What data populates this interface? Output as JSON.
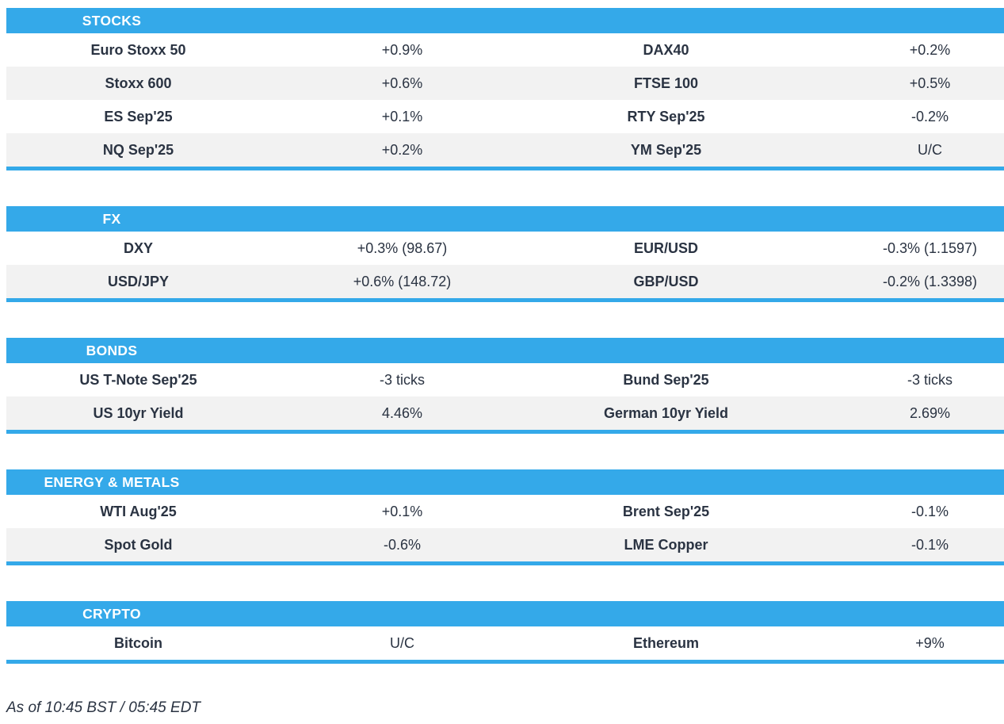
{
  "colors": {
    "accent_blue": "#34a9e9",
    "row_alt_gray": "#f2f2f2",
    "text_dark": "#2a3342",
    "header_text": "#ffffff"
  },
  "sections": [
    {
      "title": "STOCKS",
      "rows": [
        [
          "Euro Stoxx 50",
          "+0.9%",
          "DAX40",
          "+0.2%"
        ],
        [
          "Stoxx 600",
          "+0.6%",
          "FTSE 100",
          "+0.5%"
        ],
        [
          "ES Sep'25",
          "+0.1%",
          "RTY Sep'25",
          "-0.2%"
        ],
        [
          "NQ Sep'25",
          "+0.2%",
          "YM Sep'25",
          "U/C"
        ]
      ]
    },
    {
      "title": "FX",
      "rows": [
        [
          "DXY",
          "+0.3% (98.67)",
          "EUR/USD",
          "-0.3% (1.1597)"
        ],
        [
          "USD/JPY",
          "+0.6% (148.72)",
          "GBP/USD",
          "-0.2% (1.3398)"
        ]
      ]
    },
    {
      "title": "BONDS",
      "rows": [
        [
          "US T-Note Sep'25",
          "-3 ticks",
          "Bund Sep'25",
          "-3 ticks"
        ],
        [
          "US 10yr Yield",
          "4.46%",
          "German 10yr Yield",
          "2.69%"
        ]
      ]
    },
    {
      "title": "ENERGY & METALS",
      "rows": [
        [
          "WTI Aug'25",
          "+0.1%",
          "Brent Sep'25",
          "-0.1%"
        ],
        [
          "Spot Gold",
          "-0.6%",
          "LME Copper",
          "-0.1%"
        ]
      ]
    },
    {
      "title": "CRYPTO",
      "rows": [
        [
          "Bitcoin",
          "U/C",
          "Ethereum",
          "+9%"
        ]
      ]
    }
  ],
  "footer": {
    "as_of": "As of 10:45 BST / 05:45 EDT"
  }
}
